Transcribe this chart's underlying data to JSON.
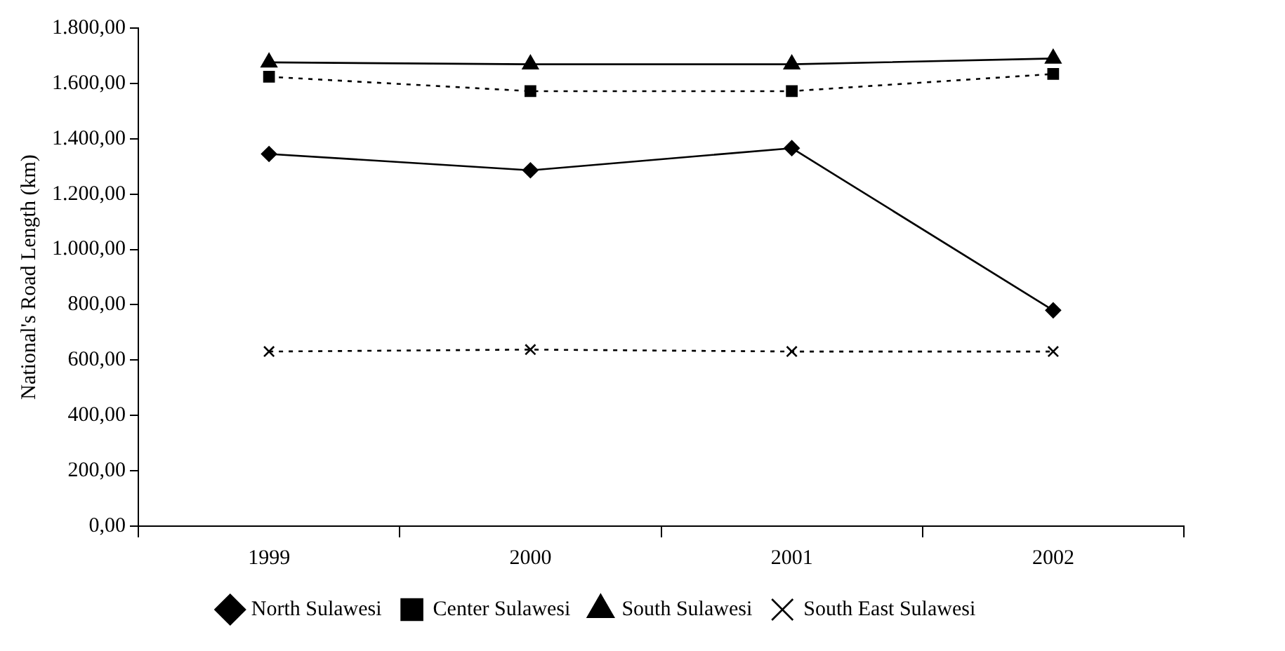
{
  "chart_data": {
    "type": "line",
    "ylabel": "National's Road Length (km)",
    "categories": [
      "1999",
      "2000",
      "2001",
      "2002"
    ],
    "series": [
      {
        "name": "North Sulawesi",
        "color": "#000000",
        "values": [
          1345,
          1286,
          1366,
          780
        ],
        "marker": "diamond",
        "line_style": "solid"
      },
      {
        "name": "Center Sulawesi",
        "color": "#000000",
        "values": [
          1624,
          1572,
          1572,
          1634
        ],
        "marker": "square",
        "line_style": "dashed"
      },
      {
        "name": "South Sulawesi",
        "color": "#000000",
        "values": [
          1676,
          1669,
          1669,
          1690
        ],
        "marker": "triangle",
        "line_style": "solid"
      },
      {
        "name": "South East Sulawesi",
        "color": "#000000",
        "values": [
          631,
          638,
          631,
          631
        ],
        "marker": "cross",
        "line_style": "dashed"
      }
    ],
    "ylim": [
      0,
      1800
    ],
    "yticks": [
      {
        "value": 0,
        "label": "0,00"
      },
      {
        "value": 200,
        "label": "200,00"
      },
      {
        "value": 400,
        "label": "400,00"
      },
      {
        "value": 600,
        "label": "600,00"
      },
      {
        "value": 800,
        "label": "800,00"
      },
      {
        "value": 1000,
        "label": "1.000,00"
      },
      {
        "value": 1200,
        "label": "1.200,00"
      },
      {
        "value": 1400,
        "label": "1.400,00"
      },
      {
        "value": 1600,
        "label": "1.600,00"
      },
      {
        "value": 1800,
        "label": "1.800,00"
      }
    ],
    "grid": false,
    "legend": "bottom"
  }
}
